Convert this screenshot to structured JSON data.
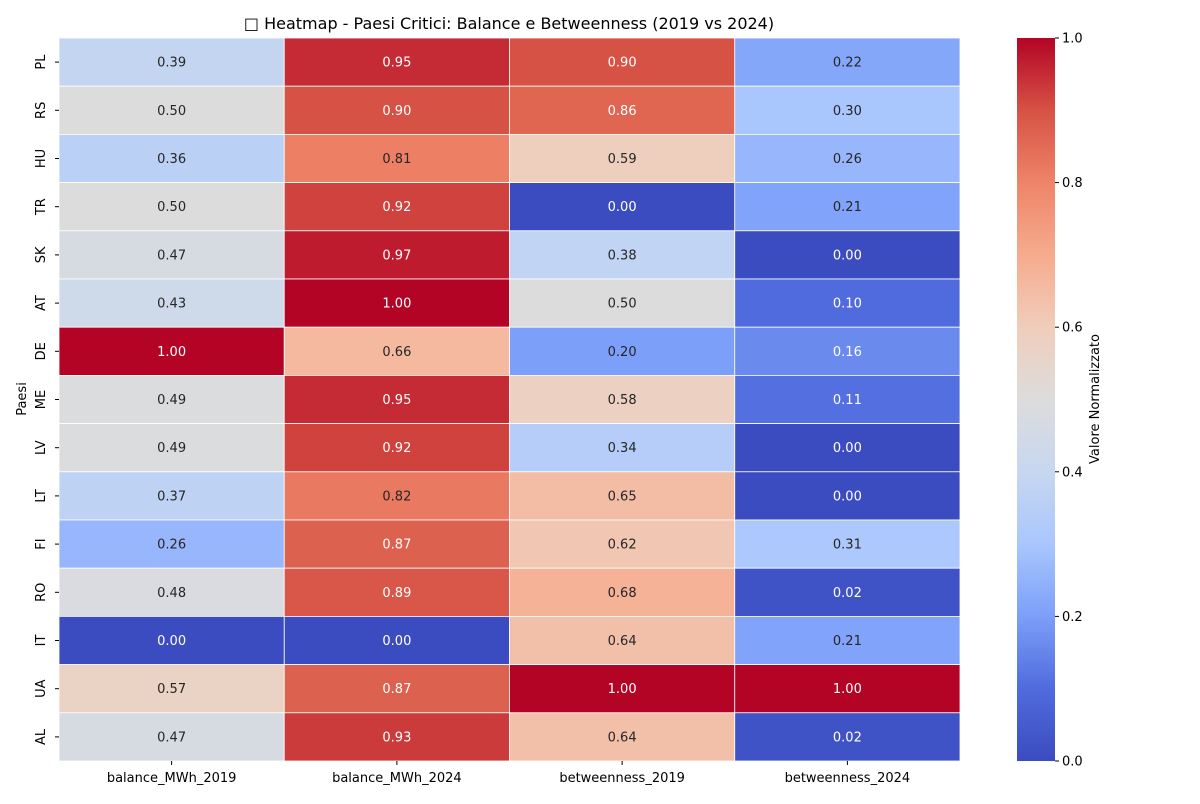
{
  "chart_data": {
    "type": "heatmap",
    "title": "□ Heatmap - Paesi Critici: Balance e Betweenness (2019 vs 2024)",
    "xlabel": "",
    "ylabel": "Paesi",
    "colorbar_label": "Valore Normalizzato",
    "colormap": "coolwarm",
    "vmin": 0.0,
    "vmax": 1.0,
    "colorbar_ticks": [
      "0.0",
      "0.2",
      "0.4",
      "0.6",
      "0.8",
      "1.0"
    ],
    "columns": [
      "balance_MWh_2019",
      "balance_MWh_2024",
      "betweenness_2019",
      "betweenness_2024"
    ],
    "rows": [
      "PL",
      "RS",
      "HU",
      "TR",
      "SK",
      "AT",
      "DE",
      "ME",
      "LV",
      "LT",
      "FI",
      "RO",
      "IT",
      "UA",
      "AL"
    ],
    "values": [
      [
        0.39,
        0.95,
        0.9,
        0.22
      ],
      [
        0.5,
        0.9,
        0.86,
        0.3
      ],
      [
        0.36,
        0.81,
        0.59,
        0.26
      ],
      [
        0.5,
        0.92,
        0.0,
        0.21
      ],
      [
        0.47,
        0.97,
        0.38,
        0.0
      ],
      [
        0.43,
        1.0,
        0.5,
        0.1
      ],
      [
        1.0,
        0.66,
        0.2,
        0.16
      ],
      [
        0.49,
        0.95,
        0.58,
        0.11
      ],
      [
        0.49,
        0.92,
        0.34,
        0.0
      ],
      [
        0.37,
        0.82,
        0.65,
        0.0
      ],
      [
        0.26,
        0.87,
        0.62,
        0.31
      ],
      [
        0.48,
        0.89,
        0.68,
        0.02
      ],
      [
        0.0,
        0.0,
        0.64,
        0.21
      ],
      [
        0.57,
        0.87,
        1.0,
        1.0
      ],
      [
        0.47,
        0.93,
        0.64,
        0.02
      ]
    ]
  }
}
